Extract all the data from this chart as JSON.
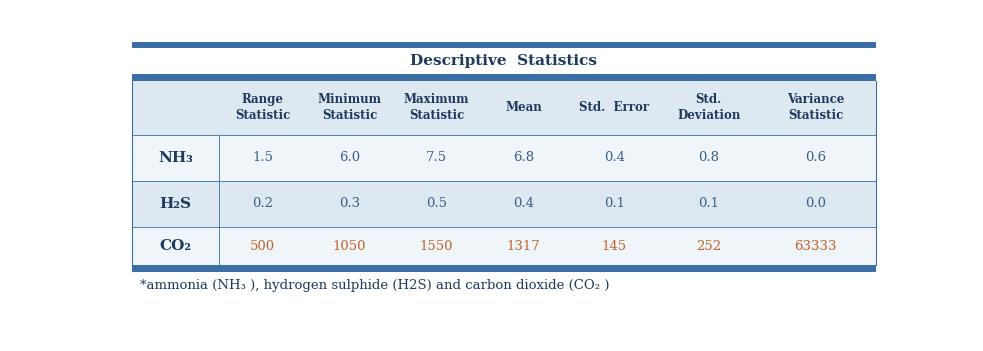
{
  "title": "Descriptive  Statistics",
  "col_headers": [
    "Range\nStatistic",
    "Minimum\nStatistic",
    "Maximum\nStatistic",
    "Mean",
    "Std.  Error",
    "Std.\nDeviation",
    "Variance\nStatistic"
  ],
  "row_label_texts": [
    "NH₃",
    "H₂S",
    "CO₂"
  ],
  "data": [
    [
      "1.5",
      "6.0",
      "7.5",
      "6.8",
      "0.4",
      "0.8",
      "0.6"
    ],
    [
      "0.2",
      "0.3",
      "0.5",
      "0.4",
      "0.1",
      "0.1",
      "0.0"
    ],
    [
      "500",
      "1050",
      "1550",
      "1317",
      "145",
      "252",
      "63333"
    ]
  ],
  "data_colors": [
    [
      "#3a5f8a",
      "#3a5f8a",
      "#3a5f8a",
      "#3a5f8a",
      "#3a5f8a",
      "#3a5f8a",
      "#3a5f8a"
    ],
    [
      "#3a5f8a",
      "#3a5f8a",
      "#3a5f8a",
      "#3a5f8a",
      "#3a5f8a",
      "#3a5f8a",
      "#3a5f8a"
    ],
    [
      "#c0622a",
      "#c0622a",
      "#c0622a",
      "#c0622a",
      "#c0622a",
      "#c0622a",
      "#c0622a"
    ]
  ],
  "footer": "*ammonia (NH₃ ), hydrogen sulphide (H2S) and carbon dioxide (CO₂ )",
  "bg_title": "#ffffff",
  "bg_col_header": "#dde8f0",
  "bg_row_white": "#f0f5fa",
  "bg_row_blue": "#dde8f0",
  "text_color_dark": "#1e3a5f",
  "text_color_orange": "#c0622a",
  "border_thick_color": "#3a6ea5",
  "border_thin_color": "#3a6ea5",
  "label_color": "#1e3a5f"
}
